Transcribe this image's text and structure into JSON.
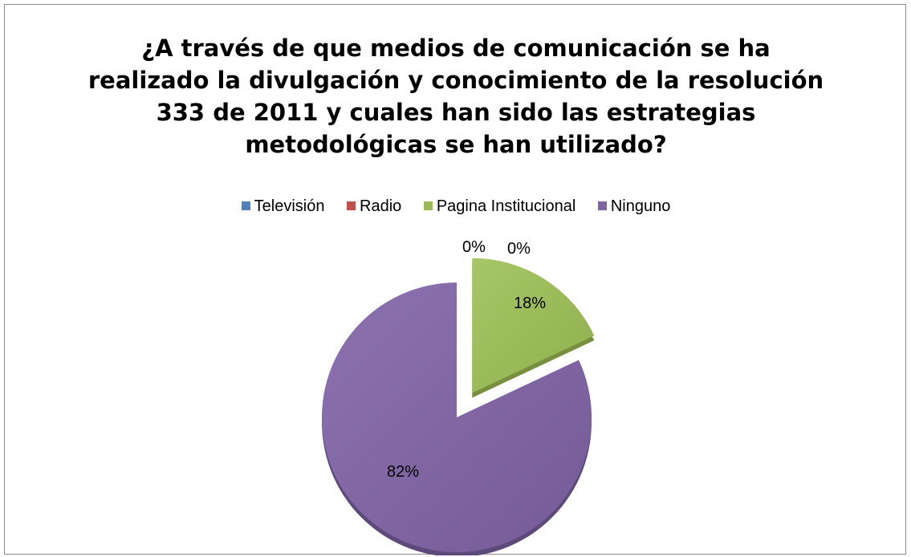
{
  "chart_data": {
    "type": "pie",
    "title": "¿A través de que medios de comunicación  se ha\nrealizado la divulgación y conocimiento de la resolución\n333 de 2011 y cuales han sido las estrategias\nmetodológicas se han utilizado?",
    "legend_position": "top",
    "categories": [
      "Televisión",
      "Radio",
      "Pagina Institucional",
      "Ninguno"
    ],
    "values": [
      0,
      0,
      18,
      82
    ],
    "labels": [
      "0%",
      "0%",
      "18%",
      "82%"
    ],
    "colors": [
      "#4f81bd",
      "#c0504d",
      "#9bbb59",
      "#8064a2"
    ],
    "exploded": true
  }
}
